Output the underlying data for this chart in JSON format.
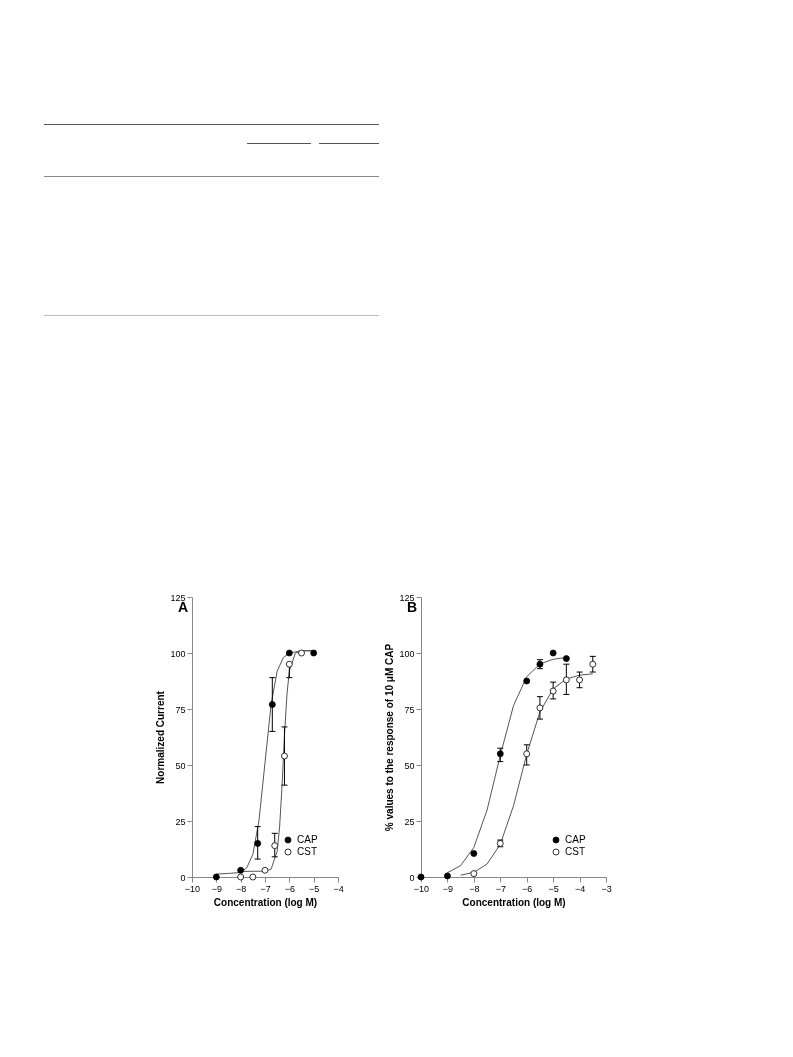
{
  "chart_data": [
    {
      "type": "scatter",
      "title": "A",
      "xlabel": "Concentration (log M)",
      "ylabel": "Normalized Current",
      "xlim": [
        -10,
        -4
      ],
      "xticks": [
        -10,
        -9,
        -8,
        -7,
        -6,
        -5,
        -4
      ],
      "ylim": [
        0,
        125
      ],
      "yticks": [
        0,
        25,
        50,
        75,
        100,
        125
      ],
      "grid": false,
      "legend": "bottom right",
      "marker": "circle",
      "series": [
        {
          "name": "CAP",
          "color": "#000000",
          "x": [
            -9,
            -8,
            -7.3,
            -6.7,
            -6,
            -5
          ],
          "values": [
            0,
            3,
            15,
            77,
            100,
            100
          ],
          "errors": [
            null,
            null,
            [
              8,
              22.5
            ],
            [
              65,
              89
            ],
            null,
            null
          ]
        },
        {
          "name": "CST",
          "color": "#ffffff",
          "x": [
            -8,
            -7.5,
            -7,
            -6.6,
            -6.2,
            -6,
            -5.5
          ],
          "values": [
            0,
            0,
            3,
            14,
            54,
            95,
            100
          ],
          "errors": [
            null,
            null,
            null,
            [
              9,
              19.5
            ],
            [
              41,
              67
            ],
            [
              89,
              95
            ],
            null
          ]
        },
        {
          "type": "line",
          "marker": "none",
          "color": "#555555",
          "x": [
            -9,
            -8.5,
            -8,
            -7.75,
            -7.5,
            -7.25,
            -7,
            -6.75,
            -6.5,
            -6.25,
            -6,
            -5.5,
            -5
          ],
          "values": [
            1.3,
            1.6,
            2,
            4.1,
            10.1,
            25,
            51,
            77,
            91.9,
            97.9,
            100,
            101,
            101
          ]
        },
        {
          "type": "line",
          "marker": "none",
          "color": "#555555",
          "x": [
            -8,
            -7,
            -6.75,
            -6.5,
            -6.4,
            -6.3,
            -6.25,
            -6.2,
            -6.1,
            -6,
            -5.75,
            -5.5,
            -5
          ],
          "values": [
            2.5,
            2.6,
            3.5,
            11.5,
            22.3,
            40.6,
            52,
            63,
            81.2,
            92,
            100,
            101,
            101
          ]
        }
      ]
    },
    {
      "type": "scatter",
      "title": "B",
      "xlabel": "Concentration (log M)",
      "ylabel": "% values to the response of 10 μM CAP",
      "xlim": [
        -10,
        -3
      ],
      "xticks": [
        -10,
        -9,
        -8,
        -7,
        -6,
        -5,
        -4,
        -3
      ],
      "ylim": [
        0,
        125
      ],
      "yticks": [
        0,
        25,
        50,
        75,
        100,
        125
      ],
      "grid": false,
      "legend": "bottom right",
      "marker": "circle",
      "series": [
        {
          "name": "CAP",
          "color": "#000000",
          "x": [
            -10,
            -9,
            -8,
            -7,
            -6,
            -5.5,
            -5,
            -4.5
          ],
          "values": [
            0,
            0.5,
            10.5,
            55,
            87.5,
            95,
            100,
            97.5
          ],
          "errors": [
            null,
            null,
            null,
            [
              51.5,
              57.5
            ],
            null,
            [
              93,
              97
            ],
            null,
            null
          ]
        },
        {
          "name": "CST",
          "color": "#ffffff",
          "x": [
            -8,
            -7,
            -6,
            -5.5,
            -5,
            -4.5,
            -4,
            -3.5
          ],
          "values": [
            1.5,
            15,
            55,
            75.5,
            83,
            88,
            88,
            95
          ],
          "errors": [
            null,
            [
              13.5,
              16.5
            ],
            [
              50,
              59
            ],
            [
              70.5,
              80.5
            ],
            [
              79.5,
              87
            ],
            [
              81.5,
              95
            ],
            [
              84.5,
              91.5
            ],
            [
              91.5,
              98.5
            ]
          ]
        },
        {
          "type": "line",
          "marker": "none",
          "color": "#555555",
          "x": [
            -9,
            -8.5,
            -8,
            -7.5,
            -7,
            -6.5,
            -6,
            -5.5,
            -5,
            -4.5
          ],
          "values": [
            1.9,
            5.1,
            13.2,
            29.9,
            54.3,
            76.5,
            89.4,
            95.1,
            97.2,
            98
          ]
        },
        {
          "type": "line",
          "marker": "none",
          "color": "#555555",
          "x": [
            -8.5,
            -8,
            -7.5,
            -7,
            -6.5,
            -6,
            -5.5,
            -5,
            -4.5,
            -4,
            -3.5
          ],
          "values": [
            0.8,
            2.1,
            5.8,
            14.6,
            31.8,
            54.8,
            73.7,
            84,
            88.4,
            90.1,
            90.7
          ]
        }
      ]
    }
  ]
}
